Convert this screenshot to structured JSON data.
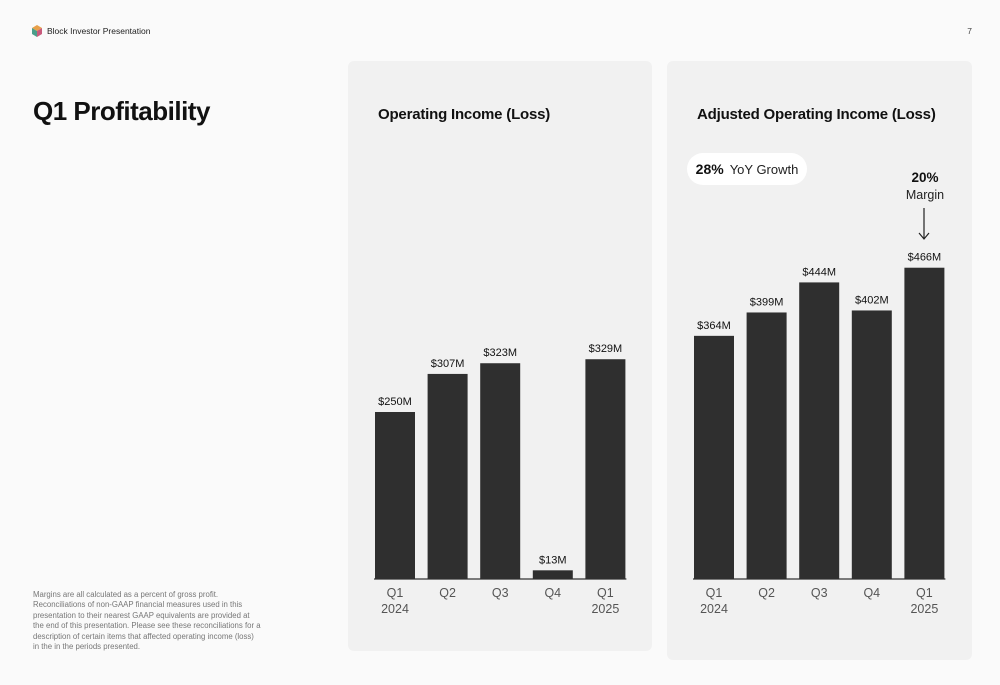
{
  "header": {
    "brand": "Block Investor Presentation",
    "page_number": "7"
  },
  "title": "Q1 Profitability",
  "footnote": "Margins are all calculated as a percent of gross profit. Reconciliations of non-GAAP financial measures used in this presentation to their nearest GAAP equivalents are provided at the end of this presentation. Please see these reconciliations for a description of certain items that affected operating income (loss) in the in the periods presented.",
  "colors": {
    "bar": "#2f2f2f",
    "panel": "#f1f1f1",
    "background": "#fafafa"
  },
  "icons": {
    "brand_logo": "block-logo-icon",
    "margin_pointer": "arrow-down-icon"
  },
  "adjusted_callouts": {
    "yoy_value": "28%",
    "yoy_label": "YoY Growth",
    "margin_value": "20%",
    "margin_label": "Margin"
  },
  "chart_data": [
    {
      "type": "bar",
      "title": "Operating Income (Loss)",
      "categories": [
        [
          "Q1",
          "2024"
        ],
        [
          "Q2",
          ""
        ],
        [
          "Q3",
          ""
        ],
        [
          "Q4",
          ""
        ],
        [
          "Q1",
          "2025"
        ]
      ],
      "values": [
        250,
        307,
        323,
        13,
        329
      ],
      "value_labels": [
        "$250M",
        "$307M",
        "$323M",
        "$13M",
        "$329M"
      ],
      "unit": "$M",
      "ylim": [
        0,
        500
      ],
      "grid": false,
      "legend": "none"
    },
    {
      "type": "bar",
      "title": "Adjusted Operating Income (Loss)",
      "categories": [
        [
          "Q1",
          "2024"
        ],
        [
          "Q2",
          ""
        ],
        [
          "Q3",
          ""
        ],
        [
          "Q4",
          ""
        ],
        [
          "Q1",
          "2025"
        ]
      ],
      "values": [
        364,
        399,
        444,
        402,
        466
      ],
      "value_labels": [
        "$364M",
        "$399M",
        "$444M",
        "$402M",
        "$466M"
      ],
      "unit": "$M",
      "ylim": [
        0,
        500
      ],
      "grid": false,
      "legend": "none"
    }
  ]
}
